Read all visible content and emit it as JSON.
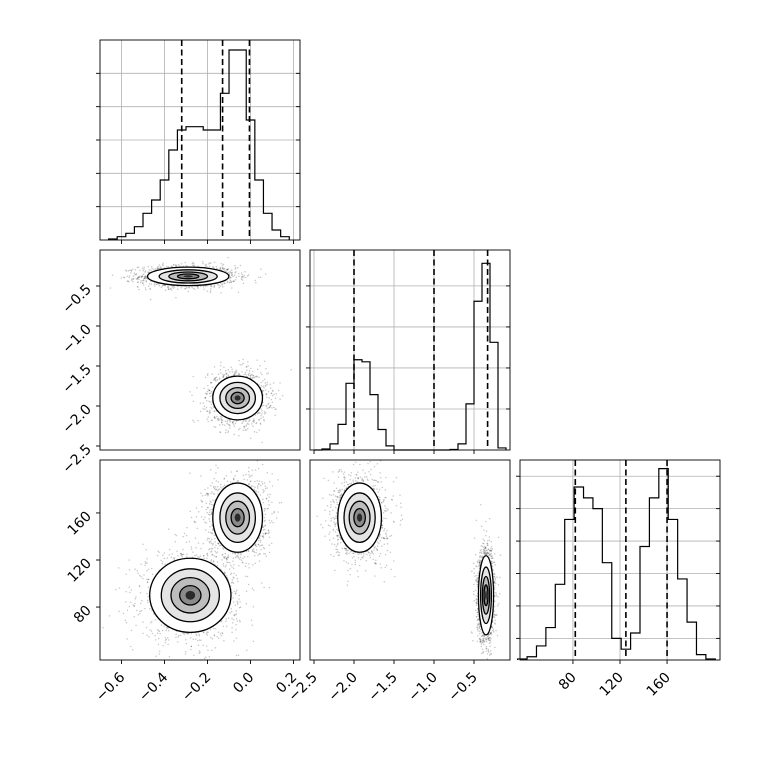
{
  "chart_data": [
    {
      "type": "histogram",
      "panel": "hist-p1",
      "xlim": [
        -0.7,
        0.23
      ],
      "x": [
        -0.64,
        -0.6,
        -0.56,
        -0.52,
        -0.48,
        -0.44,
        -0.4,
        -0.36,
        -0.32,
        -0.28,
        -0.24,
        -0.2,
        -0.16,
        -0.12,
        -0.08,
        -0.04,
        0.0,
        0.04,
        0.08,
        0.12,
        0.16
      ],
      "values": [
        0.3,
        1,
        2,
        4,
        8,
        12,
        18,
        27,
        33,
        34,
        34,
        33,
        33,
        44,
        57,
        57,
        36,
        18,
        8,
        3,
        1
      ],
      "ymax": 60,
      "quantiles": [
        -0.32,
        -0.13,
        -0.005
      ],
      "yticks": [
        10,
        20,
        30,
        40,
        50
      ],
      "grid": true
    },
    {
      "type": "histogram",
      "panel": "hist-p2",
      "xlim": [
        -2.55,
        -0.05
      ],
      "x": [
        -2.45,
        -2.35,
        -2.25,
        -2.15,
        -2.05,
        -1.95,
        -1.85,
        -1.75,
        -1.65,
        -1.55,
        -1.45,
        -1.35,
        -1.25,
        -1.15,
        -1.05,
        -0.95,
        -0.85,
        -0.75,
        -0.65,
        -0.55,
        -0.45,
        -0.35,
        -0.25,
        -0.15
      ],
      "values": [
        0,
        0.1,
        0.6,
        2.5,
        6.5,
        8.8,
        8.6,
        5.4,
        2,
        0.4,
        0,
        0,
        0,
        0,
        0,
        0,
        0,
        0.05,
        0.6,
        4.5,
        14.5,
        18.2,
        10.5,
        0.2
      ],
      "ymax": 19.5,
      "quantiles": [
        -2.0,
        -1.0,
        -0.33
      ],
      "yticks": [
        4,
        8,
        12,
        16
      ],
      "grid": true
    },
    {
      "type": "histogram",
      "panel": "hist-p3",
      "xlim": [
        35,
        205
      ],
      "x": [
        37,
        45,
        53,
        61,
        69,
        77,
        85,
        93,
        101,
        109,
        117,
        125,
        133,
        141,
        149,
        157,
        165,
        173,
        181,
        189,
        197
      ],
      "values": [
        0.1,
        0.3,
        1.3,
        3,
        7,
        13,
        16,
        15,
        14,
        9,
        2,
        1,
        2.5,
        10.5,
        15,
        17.7,
        13,
        7.5,
        3.5,
        0.5,
        0.1
      ],
      "ymax": 18.5,
      "quantiles": [
        82,
        125,
        160
      ],
      "yticks": [
        2,
        5,
        8,
        11,
        14,
        17
      ],
      "grid": true
    },
    {
      "type": "scatter-density",
      "panel": "p2-vs-p1",
      "xlim": [
        -0.7,
        0.23
      ],
      "ylim": [
        -2.55,
        -0.05
      ],
      "yticklabels": [
        "-0.5",
        "-1.0",
        "-1.5",
        "-2.0",
        "-2.5"
      ],
      "yticks": [
        -0.5,
        -1.0,
        -1.5,
        -2.0,
        -2.5
      ],
      "modes": [
        {
          "cx": -0.29,
          "cy": -0.38,
          "sx": 0.09,
          "sy": 0.055
        },
        {
          "cx": -0.06,
          "cy": -1.9,
          "sx": 0.055,
          "sy": 0.13
        }
      ]
    },
    {
      "type": "scatter-density",
      "panel": "p3-vs-p1",
      "xlim": [
        -0.7,
        0.23
      ],
      "ylim": [
        35,
        205
      ],
      "xticklabels": [
        "-0.6",
        "-0.4",
        "-0.2",
        "0.0",
        "0.2"
      ],
      "xticks": [
        -0.6,
        -0.4,
        -0.2,
        0.0,
        0.2
      ],
      "yticklabels": [
        "160",
        "120",
        "80"
      ],
      "yticks": [
        160,
        120,
        80
      ],
      "modes": [
        {
          "cx": -0.28,
          "cy": 90,
          "sx": 0.09,
          "sy": 15
        },
        {
          "cx": -0.06,
          "cy": 156,
          "sx": 0.055,
          "sy": 14
        }
      ]
    },
    {
      "type": "scatter-density",
      "panel": "p3-vs-p2",
      "xlim": [
        -2.55,
        -0.05
      ],
      "ylim": [
        35,
        205
      ],
      "xticklabels": [
        "-2.5",
        "-2.0",
        "-1.5",
        "-1.0",
        "-0.5"
      ],
      "xticks": [
        -2.5,
        -2.0,
        -1.5,
        -1.0,
        -0.5
      ],
      "modes": [
        {
          "cx": -1.93,
          "cy": 156,
          "sx": 0.13,
          "sy": 14
        },
        {
          "cx": -0.35,
          "cy": 90,
          "sx": 0.045,
          "sy": 16
        }
      ]
    },
    {
      "type": "axis-ticks",
      "panel": "hist-p3-xaxis",
      "xlim": [
        35,
        205
      ],
      "xticklabels": [
        "80",
        "120",
        "160"
      ],
      "xticks": [
        80,
        120,
        160
      ]
    }
  ]
}
